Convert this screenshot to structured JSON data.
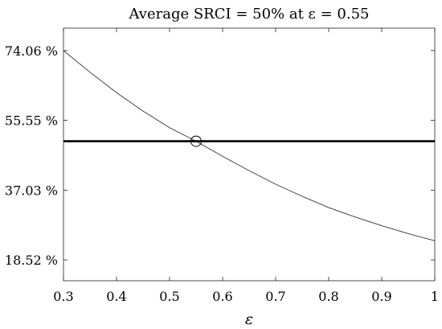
{
  "chart_data": {
    "type": "line",
    "title": "Average SRCI = 50% at ε = 0.55",
    "xlabel": "ε",
    "ylabel": "",
    "xlim": [
      0.3,
      1.0
    ],
    "ylim": [
      13.0,
      80.0
    ],
    "x_ticks": [
      0.3,
      0.4,
      0.5,
      0.6,
      0.7,
      0.8,
      0.9,
      1.0
    ],
    "x_tick_labels": [
      "0.3",
      "0.4",
      "0.5",
      "0.6",
      "0.7",
      "0.8",
      "0.9",
      "1"
    ],
    "y_ticks": [
      18.52,
      37.03,
      55.55,
      74.06
    ],
    "y_tick_labels": [
      "18.52 %",
      "37.03 %",
      "55.55 %",
      "74.06 %"
    ],
    "grid": false,
    "series": [
      {
        "x": [
          0.3,
          0.35,
          0.4,
          0.45,
          0.5,
          0.55,
          0.6,
          0.65,
          0.7,
          0.75,
          0.8,
          0.85,
          0.9,
          0.95,
          1.0
        ],
        "y": [
          74.06,
          68.3,
          62.9,
          58.0,
          53.6,
          50.0,
          46.0,
          42.2,
          38.6,
          35.4,
          32.4,
          29.9,
          27.6,
          25.5,
          23.6
        ],
        "color": "#333333"
      },
      {
        "x": [
          0.3,
          1.0
        ],
        "y": [
          50.0,
          50.0
        ],
        "color": "#000000",
        "style": "thick"
      }
    ],
    "marker": {
      "x": 0.55,
      "y": 50.0,
      "shape": "open-circle"
    }
  }
}
